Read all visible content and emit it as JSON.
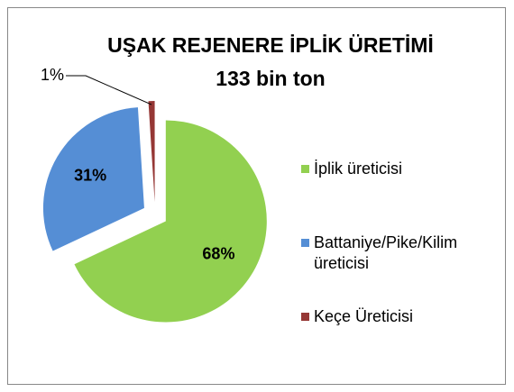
{
  "chart_data": {
    "type": "pie",
    "title": "UŞAK REJENERE İPLİK ÜRETİMİ",
    "subtitle": "133 bin ton",
    "categories": [
      "İplik üreticisi",
      "Battaniye/Pike/Kilim üreticisi",
      "Keçe Üreticisi"
    ],
    "values": [
      68,
      31,
      1
    ],
    "value_labels": [
      "68%",
      "31%",
      "1%"
    ],
    "colors": [
      "#92d050",
      "#558ed5",
      "#953735"
    ],
    "legend": "right"
  }
}
